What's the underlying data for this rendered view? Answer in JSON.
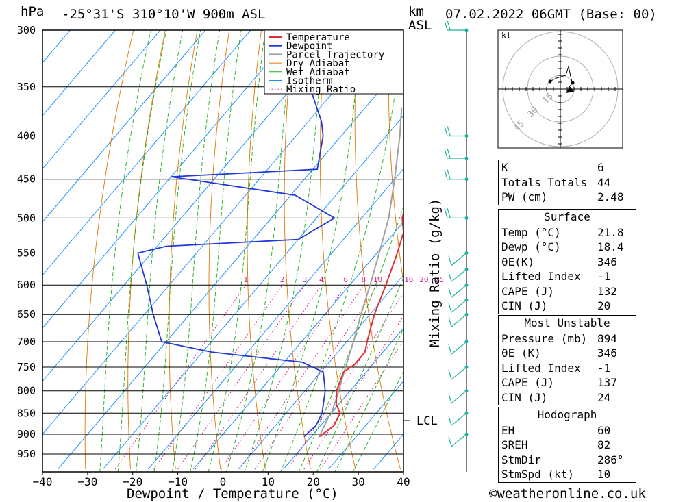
{
  "header": {
    "pressure_unit": "hPa",
    "location": "-25°31'S  310°10'W  900m  ASL",
    "km_label": "km",
    "asl_label": "ASL",
    "datetime": "07.02.2022  06GMT  (Base: 00)",
    "wind_unit": "kt"
  },
  "footer": {
    "x_axis_title": "Dewpoint / Temperature (°C)",
    "copyright": "©weatheronline.co.uk"
  },
  "mixing_ratio_title": "Mixing Ratio (g/kg)",
  "lcl_label": "LCL",
  "colors": {
    "temperature": "#e03030",
    "dewpoint": "#2038d8",
    "parcel": "#a0a0a0",
    "dry_adiabat": "#e07800",
    "wet_adiabat": "#18b018",
    "isotherm": "#1e90ff",
    "mixing_ratio": "#d01890",
    "wind": "#20b0a0"
  },
  "hodograph": {
    "unit": "kt",
    "ring_labels": [
      "15",
      "30",
      "45"
    ]
  },
  "indices": [
    {
      "key": "K",
      "value": "6"
    },
    {
      "key": "Totals Totals",
      "value": "44"
    },
    {
      "key": "PW (cm)",
      "value": "2.48"
    }
  ],
  "surface": {
    "title": "Surface",
    "rows": [
      {
        "key": "Temp (°C)",
        "value": "21.8"
      },
      {
        "key": "Dewp (°C)",
        "value": "18.4"
      },
      {
        "key": "θE(K)",
        "value": "346"
      },
      {
        "key": "Lifted Index",
        "value": "-1"
      },
      {
        "key": "CAPE (J)",
        "value": "132"
      },
      {
        "key": "CIN (J)",
        "value": "20"
      }
    ]
  },
  "most_unstable": {
    "title": "Most Unstable",
    "rows": [
      {
        "key": "Pressure (mb)",
        "value": "894"
      },
      {
        "key": "θE (K)",
        "value": "346"
      },
      {
        "key": "Lifted Index",
        "value": "-1"
      },
      {
        "key": "CAPE (J)",
        "value": "137"
      },
      {
        "key": "CIN (J)",
        "value": "24"
      }
    ]
  },
  "hodograph_table": {
    "title": "Hodograph",
    "rows": [
      {
        "key": "EH",
        "value": "60"
      },
      {
        "key": "SREH",
        "value": "82"
      },
      {
        "key": "StmDir",
        "value": "286°"
      },
      {
        "key": "StmSpd (kt)",
        "value": "10"
      }
    ]
  },
  "chart_data": {
    "type": "line",
    "title": "-25°31'S 310°10'W 900m ASL",
    "xlabel": "Dewpoint / Temperature (°C)",
    "ylabel": "hPa",
    "x_ticks": [
      -40,
      -30,
      -20,
      -10,
      0,
      10,
      20,
      30,
      40
    ],
    "pressure_levels": [
      300,
      350,
      400,
      450,
      500,
      550,
      600,
      650,
      700,
      750,
      800,
      850,
      900,
      950
    ],
    "xlim": [
      -40,
      40
    ],
    "ylim": [
      990,
      300
    ],
    "y_scale": "log",
    "mixing_ratio_labels": [
      "1",
      "2",
      "3",
      "4",
      "6",
      "8",
      "10",
      "16",
      "20",
      "25"
    ],
    "mixing_ratio_values": [
      1,
      2,
      3,
      4,
      6,
      8,
      10,
      16,
      20,
      25
    ],
    "legend": [
      "Temperature",
      "Dewpoint",
      "Parcel Trajectory",
      "Dry Adiabat",
      "Wet Adiabat",
      "Isotherm",
      "Mixing Ratio"
    ],
    "legend_position": "top-right",
    "series": [
      {
        "name": "Temperature",
        "points": [
          [
            906,
            21.8
          ],
          [
            880,
            23
          ],
          [
            850,
            22
          ],
          [
            830,
            19.5
          ],
          [
            800,
            17
          ],
          [
            760,
            15
          ],
          [
            745,
            16
          ],
          [
            720,
            16
          ],
          [
            700,
            14.5
          ],
          [
            650,
            11
          ],
          [
            600,
            8
          ],
          [
            550,
            4.5
          ],
          [
            520,
            2
          ],
          [
            500,
            -1
          ],
          [
            470,
            -4
          ],
          [
            450,
            -5
          ],
          [
            430,
            -7
          ],
          [
            400,
            -11
          ],
          [
            380,
            -14
          ],
          [
            360,
            -17
          ]
        ]
      },
      {
        "name": "Dewpoint",
        "points": [
          [
            906,
            18.4
          ],
          [
            880,
            19
          ],
          [
            850,
            18
          ],
          [
            800,
            14.5
          ],
          [
            760,
            10.5
          ],
          [
            740,
            4
          ],
          [
            720,
            -18
          ],
          [
            700,
            -31
          ],
          [
            650,
            -38
          ],
          [
            600,
            -45
          ],
          [
            550,
            -53
          ],
          [
            540,
            -48
          ],
          [
            530,
            -20
          ],
          [
            500,
            -16
          ],
          [
            470,
            -29
          ],
          [
            447,
            -60
          ],
          [
            438,
            -29
          ],
          [
            400,
            -34
          ],
          [
            385,
            -37
          ],
          [
            340,
            -49
          ],
          [
            300,
            -55
          ]
        ]
      },
      {
        "name": "Parcel Trajectory",
        "points": [
          [
            906,
            21.8
          ],
          [
            860,
            20.2
          ],
          [
            850,
            20.1
          ],
          [
            800,
            17.5
          ],
          [
            750,
            14.5
          ],
          [
            700,
            11.5
          ],
          [
            650,
            8
          ],
          [
            600,
            4.5
          ],
          [
            550,
            0.5
          ],
          [
            500,
            -4
          ],
          [
            450,
            -10
          ],
          [
            400,
            -17
          ],
          [
            370,
            -22
          ]
        ]
      }
    ],
    "wind_barbs_pressure": [
      300,
      400,
      425,
      450,
      500,
      550,
      575,
      600,
      625,
      650,
      700,
      750,
      800,
      850,
      900
    ]
  }
}
